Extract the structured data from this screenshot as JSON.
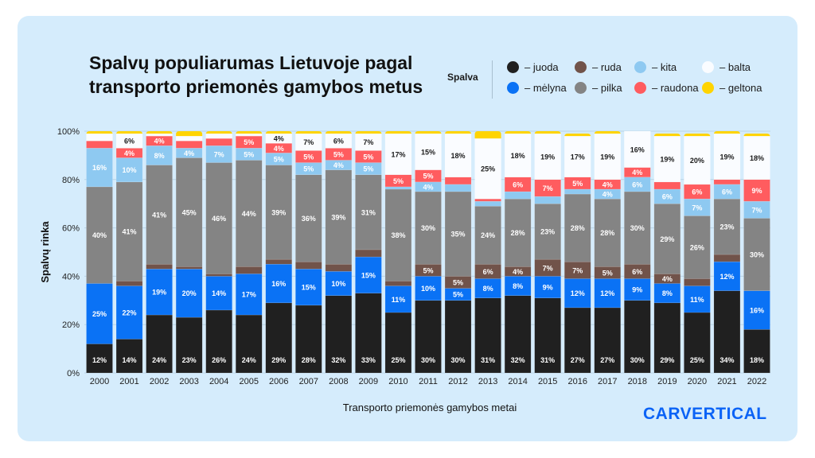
{
  "chart_data": {
    "type": "bar",
    "stacked": true,
    "title": "Spalvų populiarumas Lietuvoje pagal transporto priemonės gamybos metus",
    "xlabel": "Transporto priemonės gamybos metai",
    "ylabel": "Spalvų rinka",
    "ylim": [
      0,
      100
    ],
    "yticks": [
      "0%",
      "20%",
      "40%",
      "60%",
      "80%",
      "100%"
    ],
    "grid": true,
    "legend_title": "Spalva",
    "legend_placement": "top-right",
    "categories": [
      "2000",
      "2001",
      "2002",
      "2003",
      "2004",
      "2005",
      "2006",
      "2007",
      "2008",
      "2009",
      "2010",
      "2011",
      "2012",
      "2013",
      "2014",
      "2015",
      "2016",
      "2017",
      "2018",
      "2019",
      "2020",
      "2021",
      "2022"
    ],
    "series": [
      {
        "name": "– juoda",
        "color": "#202020",
        "label_color": "#ffffff",
        "values": [
          12,
          14,
          24,
          23,
          26,
          24,
          29,
          28,
          32,
          33,
          25,
          30,
          30,
          31,
          32,
          31,
          27,
          27,
          30,
          29,
          25,
          34,
          18
        ]
      },
      {
        "name": "– mėlyna",
        "color": "#0a72f5",
        "label_color": "#ffffff",
        "values": [
          25,
          22,
          19,
          20,
          14,
          17,
          16,
          15,
          10,
          15,
          11,
          10,
          5,
          8,
          8,
          9,
          12,
          12,
          9,
          8,
          11,
          12,
          16
        ]
      },
      {
        "name": "– ruda",
        "color": "#71534a",
        "label_color": "#ffffff",
        "values": [
          0,
          2,
          2,
          1,
          1,
          3,
          2,
          3,
          3,
          3,
          2,
          5,
          5,
          6,
          4,
          7,
          7,
          5,
          6,
          4,
          3,
          3,
          0
        ]
      },
      {
        "name": "– pilka",
        "color": "#848484",
        "label_color": "#ffffff",
        "values": [
          40,
          41,
          41,
          45,
          46,
          44,
          39,
          36,
          39,
          31,
          38,
          30,
          35,
          24,
          28,
          23,
          28,
          28,
          30,
          29,
          26,
          23,
          30
        ]
      },
      {
        "name": "– kita",
        "color": "#8ec9f1",
        "label_color": "#ffffff",
        "values": [
          16,
          10,
          8,
          4,
          7,
          5,
          5,
          5,
          4,
          5,
          1,
          4,
          3,
          2,
          3,
          3,
          2,
          4,
          6,
          6,
          7,
          6,
          7
        ]
      },
      {
        "name": "– raudona",
        "color": "#ff5c5f",
        "label_color": "#ffffff",
        "values": [
          3,
          4,
          4,
          3,
          3,
          5,
          4,
          5,
          5,
          5,
          5,
          5,
          3,
          1,
          6,
          7,
          5,
          4,
          4,
          3,
          6,
          2,
          9
        ]
      },
      {
        "name": "– balta",
        "color": "#fafcff",
        "label_color": "#1a1a1a",
        "values": [
          3,
          6,
          1,
          2,
          2,
          1,
          4,
          7,
          6,
          7,
          17,
          15,
          18,
          25,
          18,
          19,
          17,
          19,
          16,
          19,
          20,
          19,
          18
        ]
      },
      {
        "name": "– geltona",
        "color": "#ffd400",
        "label_color": "#1a1a1a",
        "values": [
          1,
          1,
          1,
          2,
          1,
          1,
          1,
          1,
          1,
          1,
          1,
          1,
          1,
          3,
          1,
          1,
          1,
          1,
          1,
          1,
          1,
          1,
          1
        ]
      }
    ]
  },
  "brand": {
    "logo": "carVertical"
  }
}
